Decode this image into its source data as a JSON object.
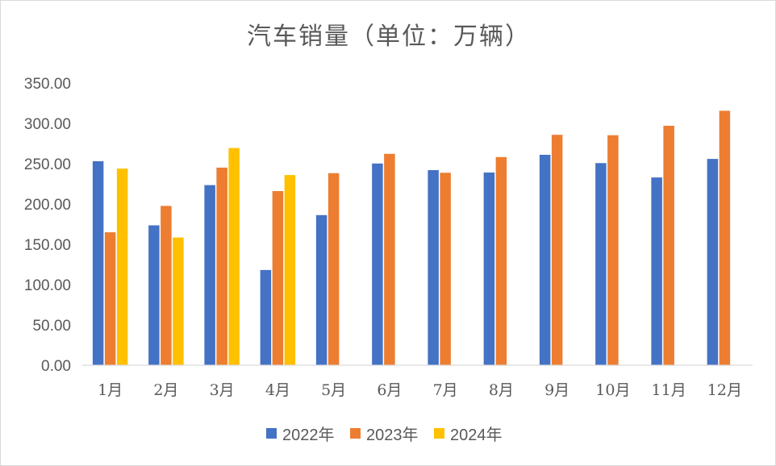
{
  "chart_data": {
    "type": "bar",
    "title": "汽车销量（单位：万辆）",
    "xlabel": "",
    "ylabel": "",
    "categories": [
      "1月",
      "2月",
      "3月",
      "4月",
      "5月",
      "6月",
      "7月",
      "8月",
      "9月",
      "10月",
      "11月",
      "12月"
    ],
    "series": [
      {
        "name": "2022年",
        "color": "#4472c4",
        "values": [
          253.0,
          173.5,
          223.4,
          118.1,
          186.2,
          250.2,
          242.0,
          239.0,
          261.0,
          250.7,
          232.9,
          255.9
        ]
      },
      {
        "name": "2023年",
        "color": "#ed7d31",
        "values": [
          164.9,
          197.6,
          245.1,
          216.0,
          238.2,
          262.2,
          238.7,
          258.2,
          285.8,
          285.3,
          297.0,
          315.6
        ]
      },
      {
        "name": "2024年",
        "color": "#ffc000",
        "values": [
          243.9,
          158.4,
          269.4,
          235.9,
          null,
          null,
          null,
          null,
          null,
          null,
          null,
          null
        ]
      }
    ],
    "ylim": [
      0,
      350
    ],
    "yticks": [
      "0.00",
      "50.00",
      "100.00",
      "150.00",
      "200.00",
      "250.00",
      "300.00",
      "350.00"
    ],
    "grid": false,
    "legend": "bottom"
  }
}
